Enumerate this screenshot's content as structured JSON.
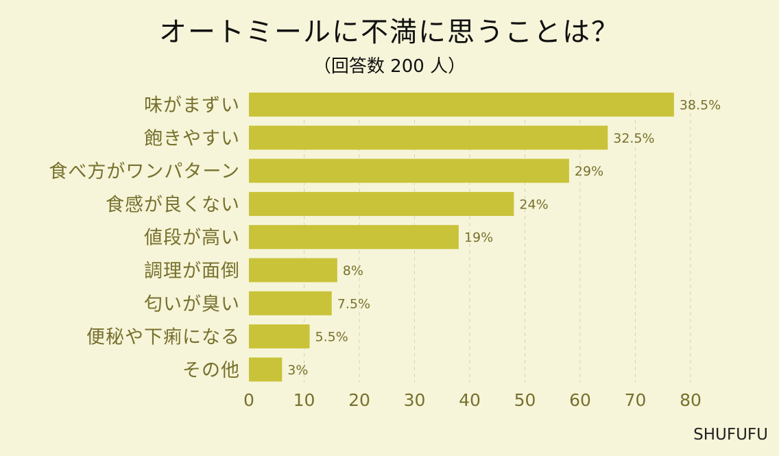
{
  "title": "オートミールに不満に思うことは？",
  "subtitle": "（回答数 200 人）",
  "brand": "SHUFUFU",
  "colors": {
    "background": "#f6f5d9",
    "bar": "#c9c33a",
    "label": "#77702d"
  },
  "chart_data": {
    "type": "bar",
    "orientation": "horizontal",
    "title": "オートミールに不満に思うことは？",
    "subtitle": "（回答数 200 人）",
    "xlabel": "",
    "ylabel": "",
    "xlim": [
      0,
      80
    ],
    "xticks": [
      0,
      10,
      20,
      30,
      40,
      50,
      60,
      70,
      80
    ],
    "grid": "vertical dashed",
    "categories": [
      "味がまずい",
      "飽きやすい",
      "食べ方がワンパターン",
      "食感が良くない",
      "値段が高い",
      "調理が面倒",
      "匂いが臭い",
      "便秘や下痢になる",
      "その他"
    ],
    "values": [
      77,
      65,
      58,
      48,
      38,
      16,
      15,
      11,
      6
    ],
    "value_labels": [
      "38.5%",
      "32.5%",
      "29%",
      "24%",
      "19%",
      "8%",
      "7.5%",
      "5.5%",
      "3%"
    ]
  }
}
